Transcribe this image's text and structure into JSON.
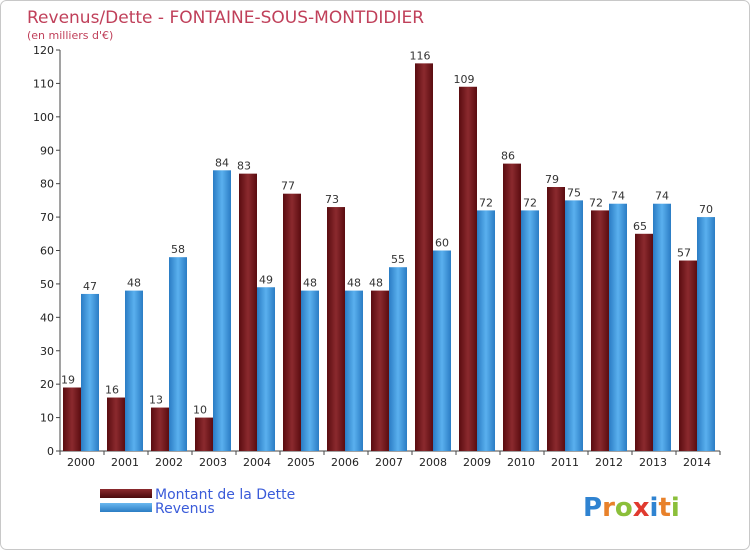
{
  "chart_data": {
    "type": "bar",
    "title": "Revenus/Dette - FONTAINE-SOUS-MONTDIDIER",
    "subtitle": "(en milliers d'€)",
    "categories": [
      "2000",
      "2001",
      "2002",
      "2003",
      "2004",
      "2005",
      "2006",
      "2007",
      "2008",
      "2009",
      "2010",
      "2011",
      "2012",
      "2013",
      "2014"
    ],
    "series": [
      {
        "name": "Montant de la Dette",
        "color": "#7a1a1e",
        "values": [
          19,
          16,
          13,
          10,
          83,
          77,
          73,
          48,
          116,
          109,
          86,
          79,
          72,
          65,
          57
        ]
      },
      {
        "name": "Revenus",
        "color": "#3d95dc",
        "values": [
          47,
          48,
          58,
          84,
          49,
          48,
          48,
          55,
          60,
          72,
          72,
          75,
          74,
          74,
          70
        ]
      }
    ],
    "ylim": [
      0,
      120
    ],
    "yticks": [
      0,
      10,
      20,
      30,
      40,
      50,
      60,
      70,
      80,
      90,
      100,
      110,
      120
    ],
    "grid": false,
    "legend": "bottom-left"
  },
  "logo": {
    "text": "Proxiti"
  }
}
